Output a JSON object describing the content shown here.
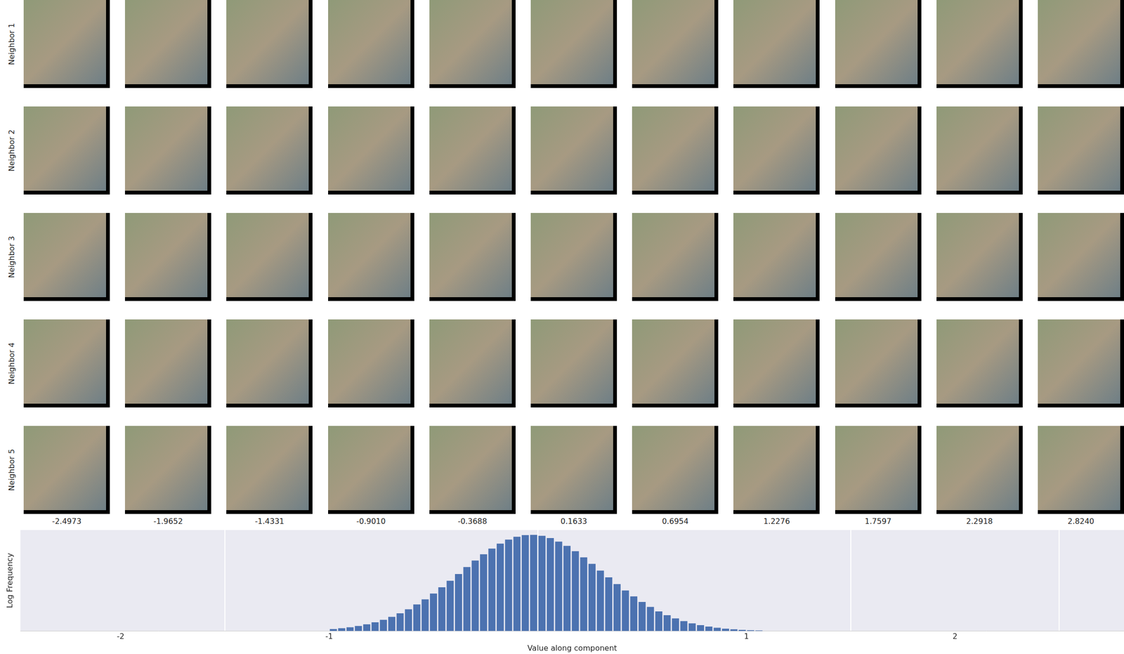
{
  "grid": {
    "row_labels": [
      "Neighbor 1",
      "Neighbor 2",
      "Neighbor 3",
      "Neighbor 4",
      "Neighbor 5"
    ],
    "column_values": [
      "-2.4973",
      "-1.9652",
      "-1.4331",
      "-0.9010",
      "-0.3688",
      "0.1633",
      "0.6954",
      "1.2276",
      "1.7597",
      "2.2918",
      "2.8240"
    ]
  },
  "chart_data": {
    "type": "histogram",
    "xlabel": "Value along component",
    "ylabel": "Log Frequency",
    "bins": [
      -1.0,
      -0.96,
      -0.92,
      -0.88,
      -0.84,
      -0.8,
      -0.76,
      -0.72,
      -0.68,
      -0.64,
      -0.6,
      -0.56,
      -0.52,
      -0.48,
      -0.44,
      -0.4,
      -0.36,
      -0.32,
      -0.28,
      -0.24,
      -0.2,
      -0.16,
      -0.12,
      -0.08,
      -0.04,
      0.0,
      0.04,
      0.08,
      0.12,
      0.16,
      0.2,
      0.24,
      0.28,
      0.32,
      0.36,
      0.4,
      0.44,
      0.48,
      0.52,
      0.56,
      0.6,
      0.64,
      0.68,
      0.72,
      0.76,
      0.8,
      0.84,
      0.88,
      0.92,
      0.96,
      1.0,
      1.04,
      1.08
    ],
    "values": [
      0.13,
      0.18,
      0.24,
      0.32,
      0.42,
      0.55,
      0.7,
      0.89,
      1.11,
      1.36,
      1.66,
      1.98,
      2.34,
      2.73,
      3.14,
      3.56,
      3.99,
      4.4,
      4.79,
      5.14,
      5.45,
      5.7,
      5.88,
      5.98,
      6.0,
      5.94,
      5.8,
      5.58,
      5.31,
      4.98,
      4.6,
      4.19,
      3.77,
      3.35,
      2.93,
      2.53,
      2.16,
      1.82,
      1.51,
      1.23,
      0.99,
      0.79,
      0.62,
      0.48,
      0.37,
      0.28,
      0.21,
      0.15,
      0.11,
      0.08,
      0.055,
      0.038
    ],
    "color": "#4c72b0",
    "xlim": [
      -2.48,
      2.81
    ],
    "xticks": [
      -2,
      -1,
      1,
      2
    ],
    "ylim": [
      0,
      6.3
    ],
    "grid": true,
    "tick_labels": "x"
  }
}
